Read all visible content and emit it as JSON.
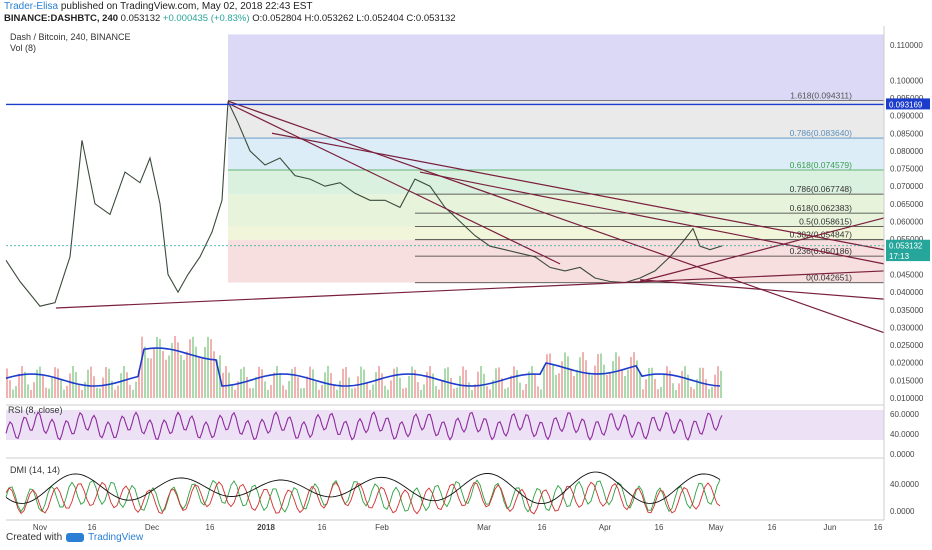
{
  "header": {
    "author": "Trader-Elisa",
    "published": "published on TradingView.com, May 02, 2018 22:43 EST",
    "symbol_line": "BINANCE:DASHBTC, 240",
    "last_price": "0.053132",
    "change": "+0.000435 (+0.83%)",
    "ohlc": "O:0.052804 H:0.053262 L:0.052404 C:0.053132"
  },
  "footer": {
    "created_with": "Created with",
    "brand": "TradingView"
  },
  "chart_data": {
    "type": "line",
    "title": "Dash / Bitcoin, 240, BINANCE",
    "indicators": [
      "Vol (8)",
      "RSI (8, close)",
      "DMI (14, 14)"
    ],
    "price_axis": {
      "ticks": [
        "0.110000",
        "0.100000",
        "0.095000",
        "0.090000",
        "0.085000",
        "0.080000",
        "0.075000",
        "0.070000",
        "0.065000",
        "0.060000",
        "0.055000",
        "0.050000",
        "0.045000",
        "0.040000",
        "0.035000",
        "0.030000",
        "0.025000",
        "0.020000",
        "0.015000",
        "0.010000"
      ],
      "tick_values": [
        0.11,
        0.1,
        0.095,
        0.09,
        0.085,
        0.08,
        0.075,
        0.07,
        0.065,
        0.06,
        0.055,
        0.05,
        0.045,
        0.04,
        0.035,
        0.03,
        0.025,
        0.02,
        0.015,
        0.01
      ],
      "badges": [
        {
          "value": 0.093169,
          "label": "0.093169",
          "color": "#1c3ccc"
        },
        {
          "value": 0.053132,
          "label": "0.053132",
          "color": "#26a69a"
        },
        {
          "value": 0.0502,
          "label": "17:13",
          "color": "#26a69a"
        }
      ]
    },
    "rsi_axis": {
      "ticks": [
        "60.0000",
        "40.0000",
        "0.0000"
      ]
    },
    "dmi_axis": {
      "ticks": [
        "40.0000",
        "0.0000"
      ]
    },
    "time_axis": {
      "labels": [
        "Nov",
        "16",
        "Dec",
        "16",
        "2018",
        "16",
        "Feb",
        "Mar",
        "16",
        "Apr",
        "16",
        "May",
        "16",
        "Jun",
        "16"
      ]
    },
    "fib_levels": [
      {
        "label": "1.618(0.094311)",
        "value": 0.094311,
        "color": "#555555"
      },
      {
        "label": "0.786(0.083640)",
        "value": 0.08364,
        "color": "#5b8fbd"
      },
      {
        "label": "0.618(0.074579)",
        "value": 0.074579,
        "color": "#3aa04a"
      },
      {
        "label": "0.786(0.067748)",
        "value": 0.067748,
        "color": "#333333"
      },
      {
        "label": "0.618(0.062383)",
        "value": 0.062383,
        "color": "#333333"
      },
      {
        "label": "0.5(0.058615)",
        "value": 0.058615,
        "color": "#333333"
      },
      {
        "label": "0.382(0.054847)",
        "value": 0.054847,
        "color": "#333333"
      },
      {
        "label": "0.236(0.050186)",
        "value": 0.050186,
        "color": "#333333"
      },
      {
        "label": "0(0.042651)",
        "value": 0.042651,
        "color": "#333333"
      }
    ],
    "colors": {
      "trendline": "#7a1f3d",
      "hline": "#1c3ccc",
      "volume_ma": "#1c3ccc",
      "rsi": "#8e2a9e",
      "rsi_band": "#e9d9f3",
      "dmi_plus": "#2ea043",
      "dmi_minus": "#d32f2f",
      "adx": "#111111"
    }
  }
}
